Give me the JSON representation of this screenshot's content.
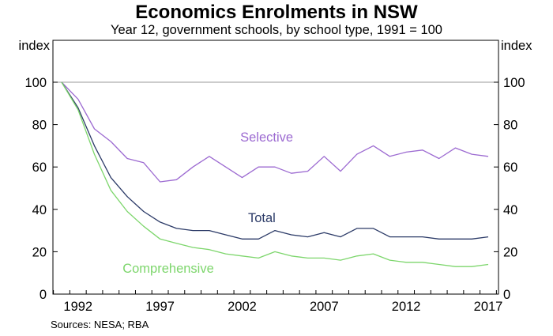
{
  "chart_data": {
    "type": "line",
    "title": "Economics Enrolments in NSW",
    "subtitle": "Year 12, government schools, by school type, 1991 = 100",
    "ylabel_left": "index",
    "ylabel_right": "index",
    "source": "Sources:   NESA; RBA",
    "ylim": [
      0,
      100
    ],
    "y_ticks": [
      0,
      20,
      40,
      60,
      80,
      100
    ],
    "xlim": [
      1991,
      2017
    ],
    "x_tick_labels": [
      "1992",
      "1997",
      "2002",
      "2007",
      "2012",
      "2017"
    ],
    "x_tick_values": [
      1992,
      1997,
      2002,
      2007,
      2012,
      2017
    ],
    "grid": "horizontal line at 100",
    "x": [
      1991,
      1992,
      1993,
      1994,
      1995,
      1996,
      1997,
      1998,
      1999,
      2000,
      2001,
      2002,
      2003,
      2004,
      2005,
      2006,
      2007,
      2008,
      2009,
      2010,
      2011,
      2012,
      2013,
      2014,
      2015,
      2016,
      2017
    ],
    "series": [
      {
        "name": "Selective",
        "color": "#9c6ad1",
        "values": [
          100,
          92,
          78,
          72,
          64,
          62,
          53,
          54,
          60,
          65,
          60,
          55,
          60,
          60,
          57,
          58,
          65,
          58,
          66,
          70,
          65,
          67,
          68,
          64,
          69,
          66,
          65
        ]
      },
      {
        "name": "Total",
        "color": "#2b3a67",
        "values": [
          100,
          88,
          70,
          55,
          46,
          39,
          34,
          31,
          30,
          30,
          28,
          26,
          26,
          30,
          28,
          27,
          29,
          27,
          31,
          31,
          27,
          27,
          27,
          26,
          26,
          26,
          27
        ]
      },
      {
        "name": "Comprehensive",
        "color": "#7dd66c",
        "values": [
          100,
          87,
          66,
          49,
          39,
          32,
          26,
          24,
          22,
          21,
          19,
          18,
          17,
          20,
          18,
          17,
          17,
          16,
          18,
          19,
          16,
          15,
          15,
          14,
          13,
          13,
          14
        ]
      }
    ],
    "labels": [
      {
        "series": "Selective",
        "text": "Selective",
        "x": 2003.5,
        "y": 72
      },
      {
        "series": "Total",
        "text": "Total",
        "x": 2003.2,
        "y": 34
      },
      {
        "series": "Comprehensive",
        "text": "Comprehensive",
        "x": 1997.5,
        "y": 10
      }
    ]
  }
}
